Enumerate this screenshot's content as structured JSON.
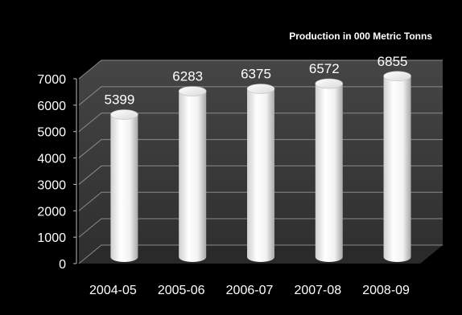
{
  "chart_data": {
    "type": "bar",
    "title": "",
    "xlabel": "",
    "ylabel": "",
    "categories": [
      "2004-05",
      "2005-06",
      "2006-07",
      "2007-08",
      "2008-09"
    ],
    "series": [
      {
        "name": "Production in 000 Metric Tonns",
        "values": [
          5399,
          6283,
          6375,
          6572,
          6855
        ]
      }
    ],
    "ylim": [
      0,
      7000
    ],
    "yticks": [
      0,
      1000,
      2000,
      3000,
      4000,
      5000,
      6000,
      7000
    ],
    "grid": true,
    "legend": "top-right",
    "bar_shape": "cylinder",
    "colors": {
      "background": "#000000",
      "plot_wall": "#3a3a3a",
      "plot_floor": "#2a2a2a",
      "gridline": "#8a8a8a",
      "bar": "#ffffff",
      "text": "#ffffff"
    }
  }
}
